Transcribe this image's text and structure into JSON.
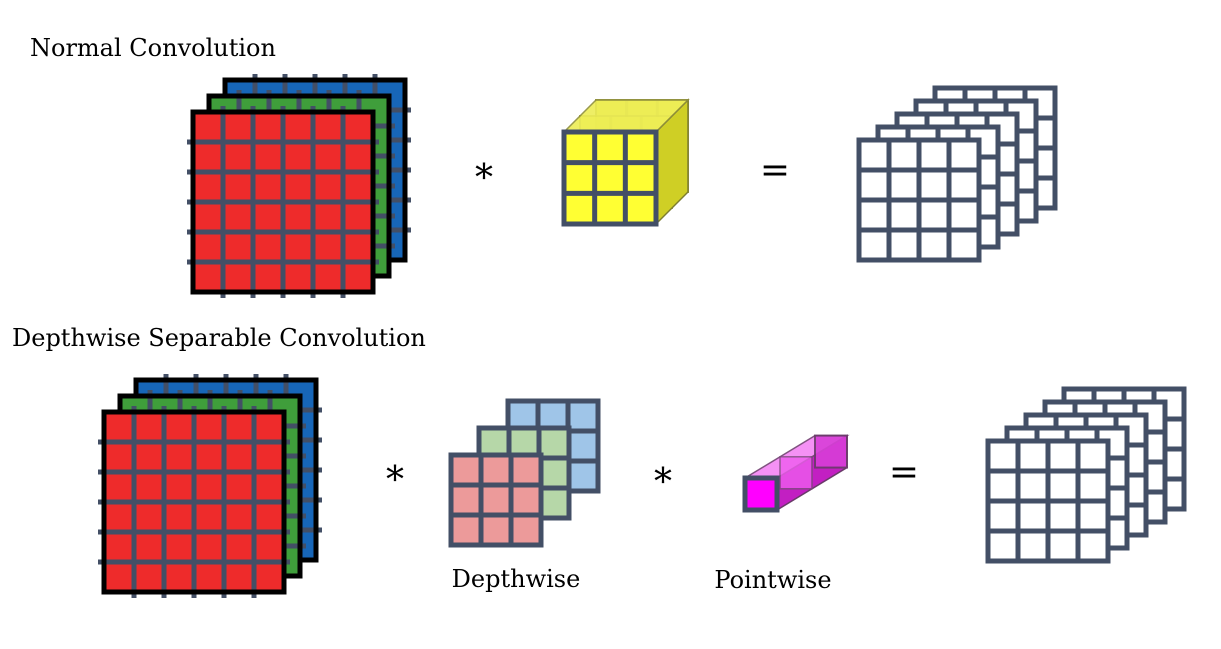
{
  "headings": {
    "normal": "Normal Convolution",
    "separable": "Depthwise Separable Convolution"
  },
  "captions": {
    "depthwise": "Depthwise",
    "pointwise": "Pointwise"
  },
  "operators": {
    "convolve": "*",
    "equals": "="
  },
  "colors": {
    "input_red": "#ee2b2b",
    "input_green": "#3f9e3b",
    "input_blue": "#1766b8",
    "grid_line": "#434f66",
    "frame_black": "#000000",
    "kernel_yellow": "#ffff33",
    "depthwise_red": "#ec9a9a",
    "depthwise_green": "#b6d7a8",
    "depthwise_blue": "#9fc5e8",
    "pointwise_magenta": "#ff00ff",
    "output_frame": "#434f66"
  }
}
